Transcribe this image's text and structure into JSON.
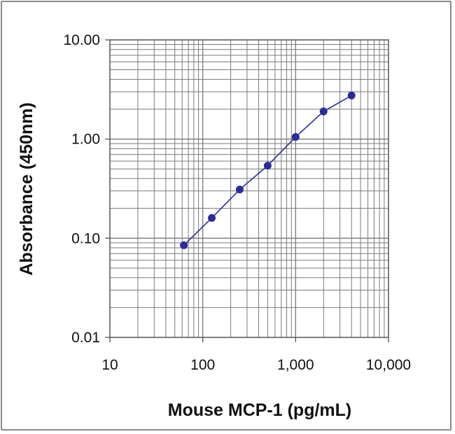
{
  "chart_data": {
    "type": "line",
    "xlabel": "Mouse MCP-1 (pg/mL)",
    "ylabel": "Absorbance (450nm)",
    "x_scale": "log",
    "y_scale": "log",
    "xlim": [
      10,
      10000
    ],
    "ylim": [
      0.01,
      10
    ],
    "x_ticks": [
      10,
      100,
      1000,
      10000
    ],
    "x_tick_labels": [
      "10",
      "100",
      "1,000",
      "10,000"
    ],
    "y_ticks": [
      0.01,
      0.1,
      1,
      10
    ],
    "y_tick_labels": [
      "0.01",
      "0.10",
      "1.00",
      "10.00"
    ],
    "grid": true,
    "legend": "none",
    "series": [
      {
        "color": "#2b2b9c",
        "marker": "circle",
        "x": [
          62.5,
          125,
          250,
          500,
          1000,
          2000,
          4000
        ],
        "y": [
          0.085,
          0.16,
          0.31,
          0.54,
          1.05,
          1.9,
          2.75
        ]
      }
    ]
  }
}
